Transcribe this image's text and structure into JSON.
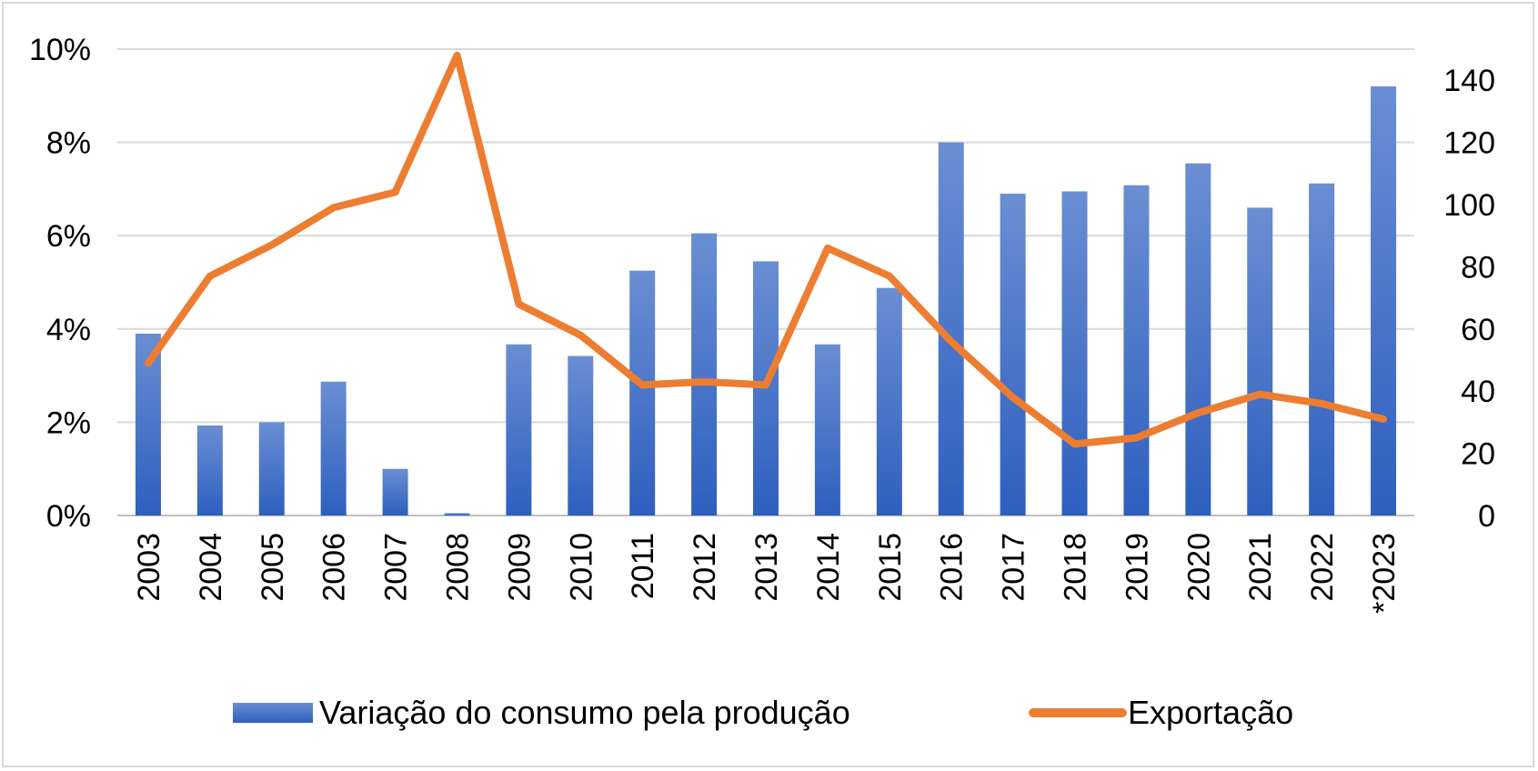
{
  "chart_data": {
    "type": "bar",
    "title": "",
    "xlabel": "",
    "categories": [
      "2003",
      "2004",
      "2005",
      "2006",
      "2007",
      "2008",
      "2009",
      "2010",
      "2011",
      "2012",
      "2013",
      "2014",
      "2015",
      "2016",
      "2017",
      "2018",
      "2019",
      "2020",
      "2021",
      "2022",
      "*2023"
    ],
    "series": [
      {
        "name": "Variação do consumo pela produção",
        "type": "bar",
        "axis": "left",
        "color": "#4472c4",
        "values": [
          3.9,
          1.93,
          2.0,
          2.87,
          1.0,
          0.05,
          3.67,
          3.42,
          5.25,
          6.05,
          5.45,
          3.67,
          4.88,
          8.0,
          6.9,
          6.95,
          7.08,
          7.55,
          6.6,
          7.12,
          9.2
        ]
      },
      {
        "name": "Exportação",
        "type": "line",
        "axis": "right",
        "color": "#ed7d31",
        "values": [
          49,
          77,
          87,
          99,
          104,
          148,
          68,
          58,
          42,
          43,
          42,
          86,
          77,
          56,
          38,
          23,
          25,
          33,
          39,
          36,
          31
        ]
      }
    ],
    "y_left": {
      "min": 0,
      "max": 10,
      "ticks": [
        "0%",
        "2%",
        "4%",
        "6%",
        "8%",
        "10%"
      ]
    },
    "y_right": {
      "min": 0,
      "max": 150,
      "ticks": [
        "0",
        "20",
        "40",
        "60",
        "80",
        "100",
        "120",
        "140"
      ]
    },
    "grid": true,
    "legend": {
      "position": "bottom",
      "entries": [
        "Variação do consumo pela produção",
        "Exportação"
      ]
    }
  }
}
